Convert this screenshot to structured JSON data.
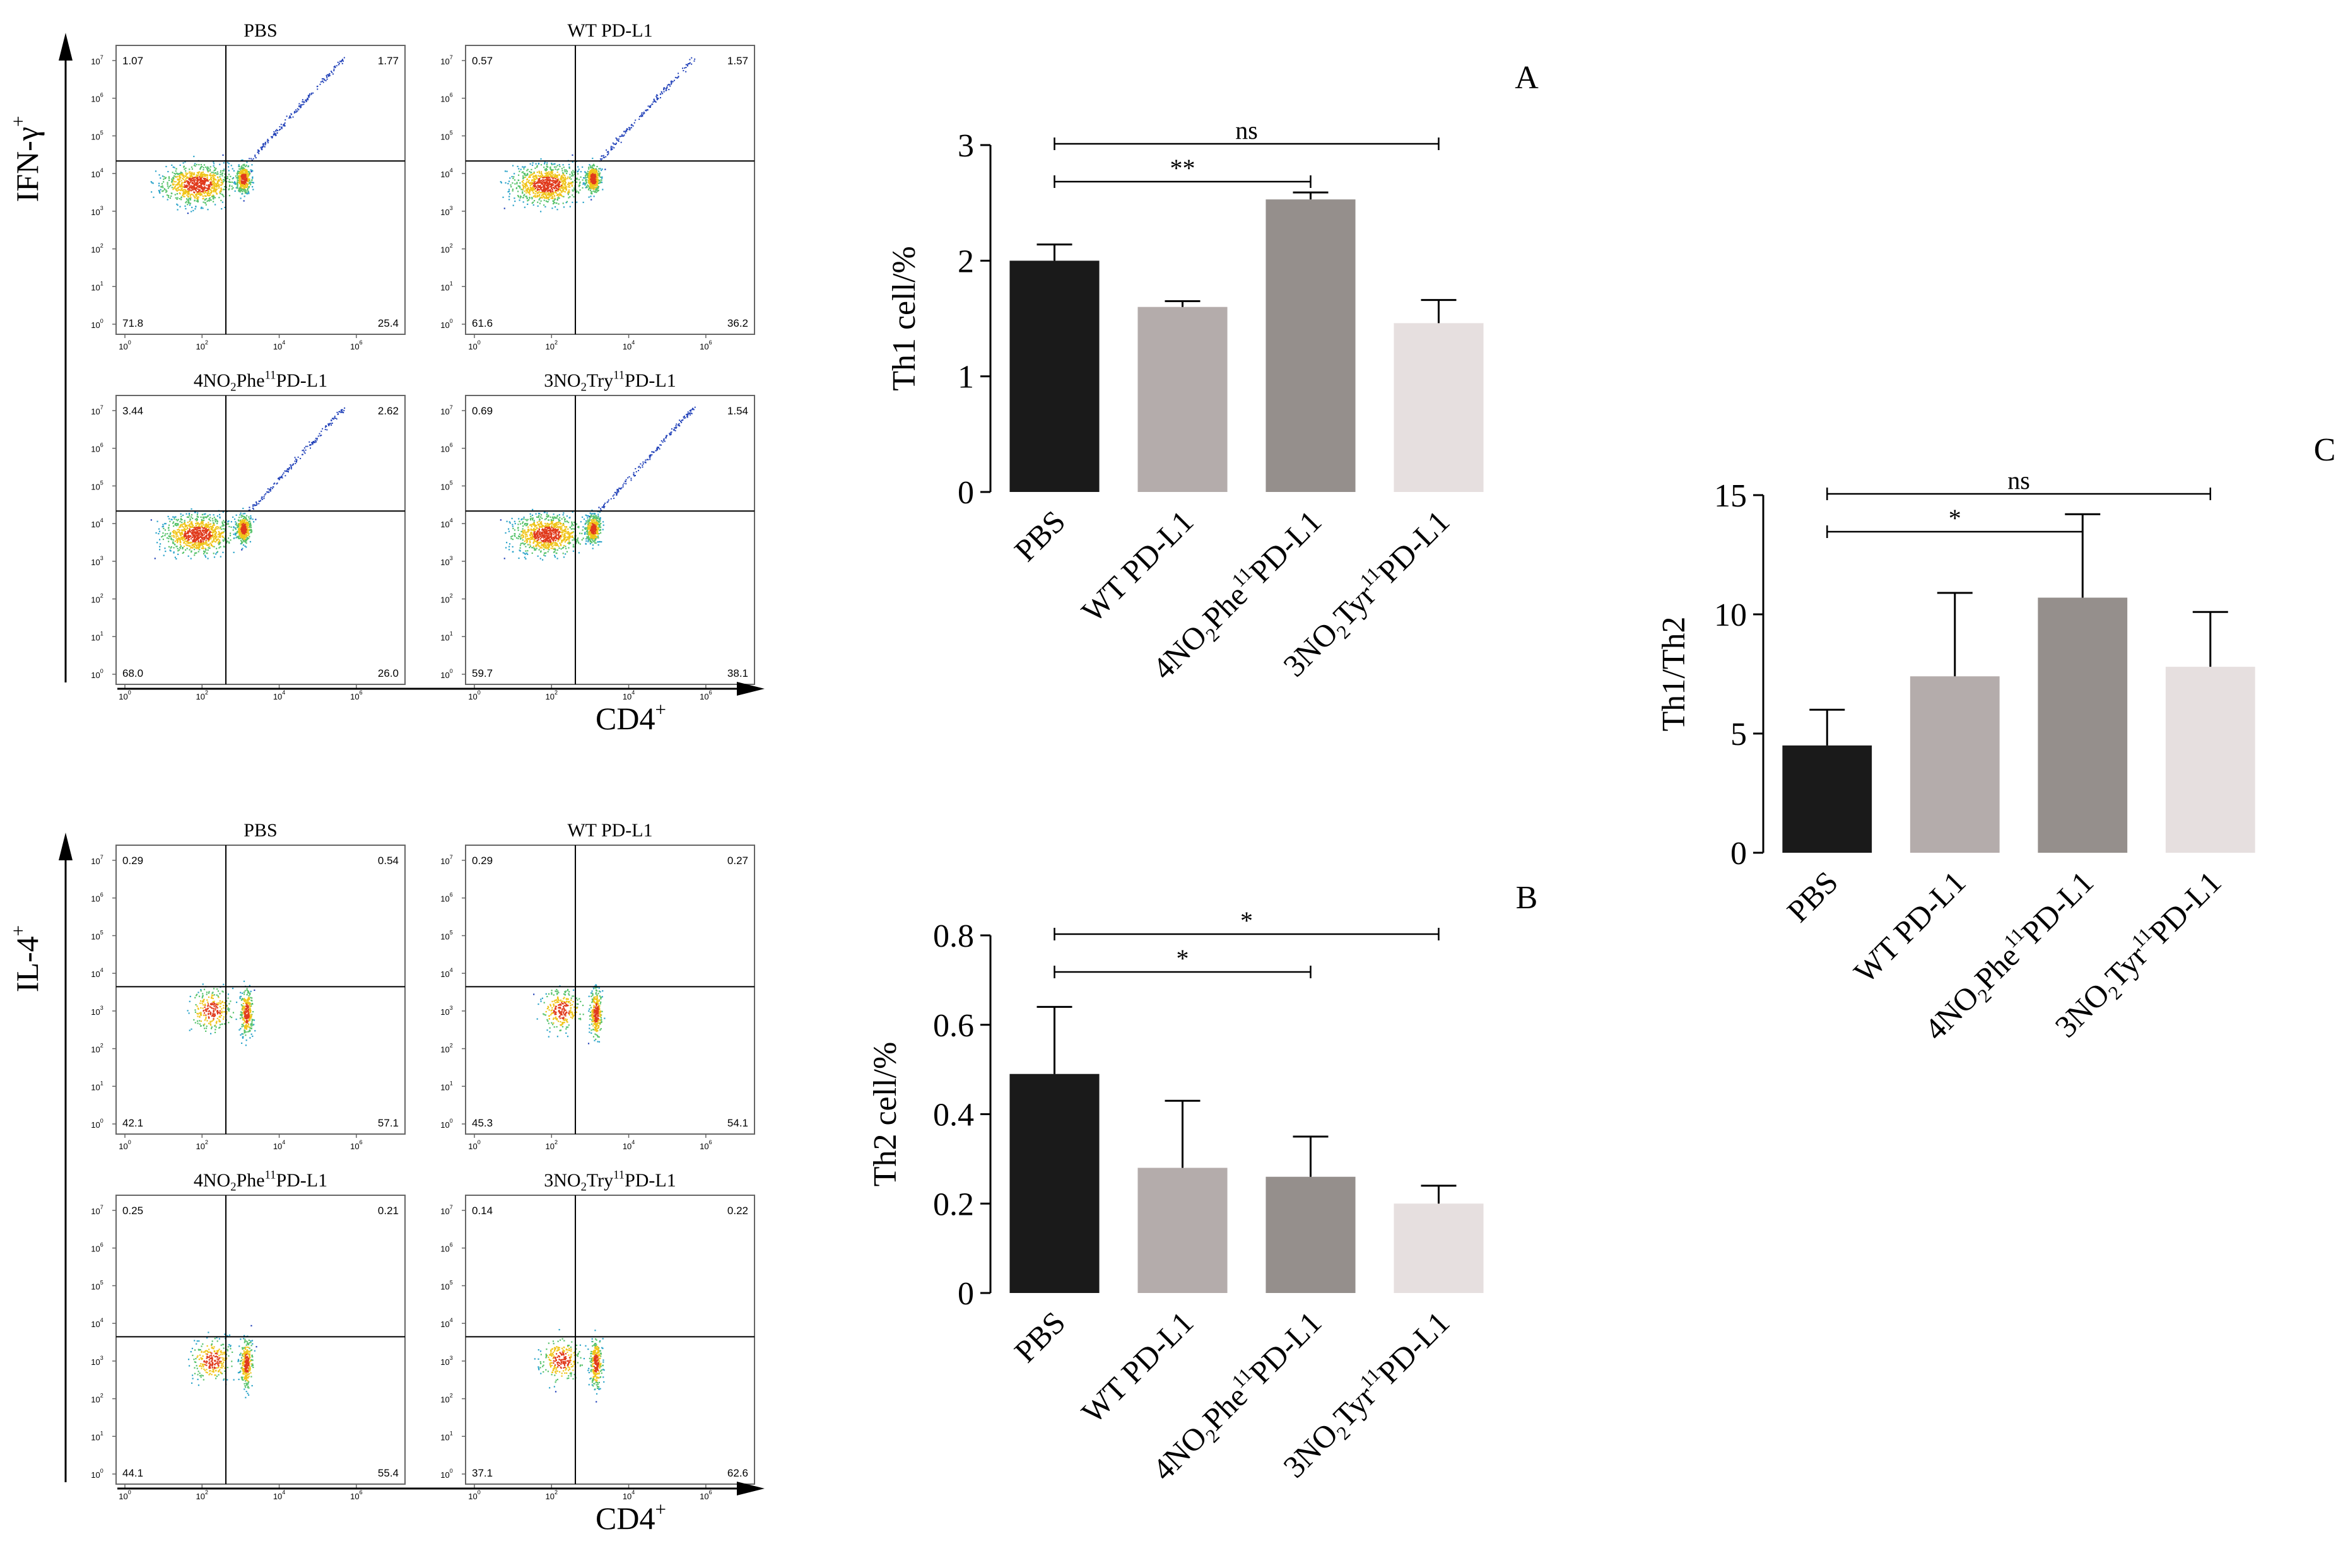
{
  "flow": {
    "exponents": [
      "0",
      "1",
      "2",
      "3",
      "4",
      "5",
      "6",
      "7"
    ],
    "tick_base": "10",
    "upper": {
      "y_axis_label": "IFN-γ",
      "y_axis_sup": "+",
      "x_axis_label": "CD4",
      "x_axis_sup": "+",
      "panels": [
        {
          "title": "PBS",
          "title_parts": [
            {
              "t": "PBS"
            }
          ],
          "q_ul": "1.07",
          "q_ur": "1.77",
          "q_ll": "71.8",
          "q_lr": "25.4"
        },
        {
          "title": "WT PD-L1",
          "title_parts": [
            {
              "t": "WT PD-L1"
            }
          ],
          "q_ul": "0.57",
          "q_ur": "1.57",
          "q_ll": "61.6",
          "q_lr": "36.2"
        },
        {
          "title": "4NO2Phe11PD-L1",
          "title_parts": [
            {
              "t": "4NO"
            },
            {
              "t": "2",
              "sub": true
            },
            {
              "t": "Phe"
            },
            {
              "t": "11",
              "sup": true
            },
            {
              "t": "PD-L1"
            }
          ],
          "q_ul": "3.44",
          "q_ur": "2.62",
          "q_ll": "68.0",
          "q_lr": "26.0"
        },
        {
          "title": "3NO2Try11PD-L1",
          "title_parts": [
            {
              "t": "3NO"
            },
            {
              "t": "2",
              "sub": true
            },
            {
              "t": "Try"
            },
            {
              "t": "11",
              "sup": true
            },
            {
              "t": "PD-L1"
            }
          ],
          "q_ul": "0.69",
          "q_ur": "1.54",
          "q_ll": "59.7",
          "q_lr": "38.1"
        }
      ]
    },
    "lower": {
      "y_axis_label": "IL-4",
      "y_axis_sup": "+",
      "x_axis_label": "CD4",
      "x_axis_sup": "+",
      "panels": [
        {
          "title": "PBS",
          "title_parts": [
            {
              "t": "PBS"
            }
          ],
          "q_ul": "0.29",
          "q_ur": "0.54",
          "q_ll": "42.1",
          "q_lr": "57.1"
        },
        {
          "title": "WT PD-L1",
          "title_parts": [
            {
              "t": "WT PD-L1"
            }
          ],
          "q_ul": "0.29",
          "q_ur": "0.27",
          "q_ll": "45.3",
          "q_lr": "54.1"
        },
        {
          "title": "4NO2Phe11PD-L1",
          "title_parts": [
            {
              "t": "4NO"
            },
            {
              "t": "2",
              "sub": true
            },
            {
              "t": "Phe"
            },
            {
              "t": "11",
              "sup": true
            },
            {
              "t": "PD-L1"
            }
          ],
          "q_ul": "0.25",
          "q_ur": "0.21",
          "q_ll": "44.1",
          "q_lr": "55.4"
        },
        {
          "title": "3NO2Try11PD-L1",
          "title_parts": [
            {
              "t": "3NO"
            },
            {
              "t": "2",
              "sub": true
            },
            {
              "t": "Try"
            },
            {
              "t": "11",
              "sup": true
            },
            {
              "t": "PD-L1"
            }
          ],
          "q_ul": "0.14",
          "q_ur": "0.22",
          "q_ll": "37.1",
          "q_lr": "62.6"
        }
      ]
    }
  },
  "category_labels": [
    [
      {
        "t": "PBS"
      }
    ],
    [
      {
        "t": "WT PD-L1"
      }
    ],
    [
      {
        "t": "4NO"
      },
      {
        "t": "2",
        "sub": true
      },
      {
        "t": "Phe"
      },
      {
        "t": "11",
        "sup": true
      },
      {
        "t": "PD-L1"
      }
    ],
    [
      {
        "t": "3NO"
      },
      {
        "t": "2",
        "sub": true
      },
      {
        "t": "Tyr"
      },
      {
        "t": "11",
        "sup": true
      },
      {
        "t": "PD-L1"
      }
    ]
  ],
  "bar_colors": [
    "#1a1a1a",
    "#b4acab",
    "#958f8c",
    "#e6dfdf"
  ],
  "chart_data": [
    {
      "panel": "A",
      "type": "bar",
      "categories": [
        "PBS",
        "WT PD-L1",
        "4NO2Phe11PD-L1",
        "3NO2Tyr11PD-L1"
      ],
      "values": [
        2.0,
        1.6,
        2.53,
        1.46
      ],
      "errors": [
        0.14,
        0.05,
        0.06,
        0.2
      ],
      "ylabel": "Th1 cell/%",
      "ylim": [
        0,
        3
      ],
      "yticks": [
        "0",
        "1",
        "2",
        "3"
      ],
      "ytick_values": [
        0,
        1,
        2,
        3
      ],
      "significance": [
        {
          "from": 0,
          "to": 3,
          "label": "ns"
        },
        {
          "from": 0,
          "to": 2,
          "label": "**"
        }
      ]
    },
    {
      "panel": "B",
      "type": "bar",
      "categories": [
        "PBS",
        "WT PD-L1",
        "4NO2Phe11PD-L1",
        "3NO2Tyr11PD-L1"
      ],
      "values": [
        0.49,
        0.28,
        0.26,
        0.2
      ],
      "errors": [
        0.15,
        0.15,
        0.09,
        0.04
      ],
      "ylabel": "Th2 cell/%",
      "ylim": [
        0,
        0.8
      ],
      "yticks": [
        "0",
        "0.2",
        "0.4",
        "0.6",
        "0.8"
      ],
      "ytick_values": [
        0,
        0.2,
        0.4,
        0.6,
        0.8
      ],
      "significance": [
        {
          "from": 0,
          "to": 3,
          "label": "*"
        },
        {
          "from": 0,
          "to": 2,
          "label": "*"
        }
      ]
    },
    {
      "panel": "C",
      "type": "bar",
      "categories": [
        "PBS",
        "WT PD-L1",
        "4NO2Phe11PD-L1",
        "3NO2Tyr11PD-L1"
      ],
      "values": [
        4.5,
        7.4,
        10.7,
        7.8
      ],
      "errors": [
        1.5,
        3.5,
        3.5,
        2.3
      ],
      "ylabel": "Th1/Th2",
      "ylim": [
        0,
        15
      ],
      "yticks": [
        "0",
        "5",
        "10",
        "15"
      ],
      "ytick_values": [
        0,
        5,
        10,
        15
      ],
      "significance": [
        {
          "from": 0,
          "to": 3,
          "label": "ns"
        },
        {
          "from": 0,
          "to": 2,
          "label": "*"
        }
      ]
    }
  ]
}
